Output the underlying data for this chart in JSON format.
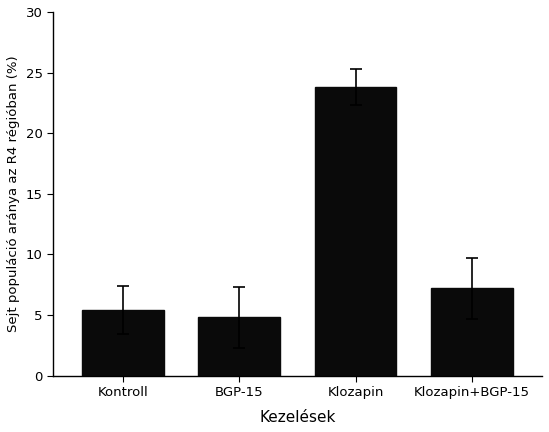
{
  "categories": [
    "Kontroll",
    "BGP-15",
    "Klozapin",
    "Klozapin+BGP-15"
  ],
  "values": [
    5.4,
    4.8,
    23.8,
    7.2
  ],
  "errors": [
    2.0,
    2.5,
    1.5,
    2.5
  ],
  "bar_color": "#0a0a0a",
  "bar_width": 0.7,
  "ylabel": "Sejt populáció aránya az R4 régióban (%)",
  "xlabel": "Kezelések",
  "ylim": [
    0,
    30
  ],
  "yticks": [
    0,
    5,
    10,
    15,
    20,
    25,
    30
  ],
  "background_color": "#ffffff",
  "ylabel_fontsize": 9.5,
  "xlabel_fontsize": 11,
  "tick_fontsize": 9.5,
  "capsize": 4,
  "figsize": [
    5.49,
    4.32
  ],
  "dpi": 100
}
